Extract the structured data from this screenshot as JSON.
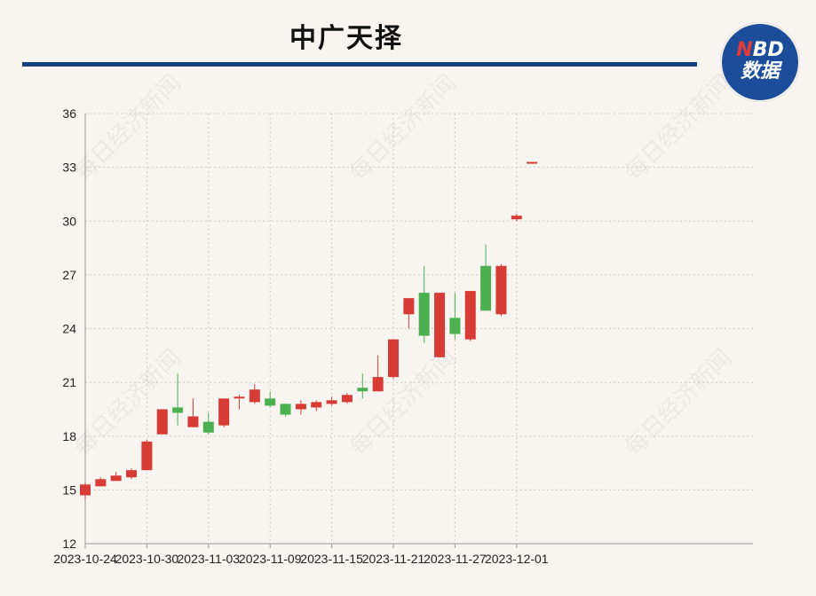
{
  "header": {
    "title": "中广天择",
    "logo_line1_accent": "N",
    "logo_line1_rest": "BD",
    "logo_line2": "数据"
  },
  "watermark_text": "每日经济新闻",
  "colors": {
    "up": "#d63b35",
    "down": "#4caf50",
    "title_rule": "#173f7f",
    "logo": "#1b4d9a",
    "grid": "#cfcac4",
    "axis": "#999999",
    "background": "#f8f4ef"
  },
  "chart_data": {
    "type": "candlestick",
    "title": "中广天择",
    "ylim": [
      12,
      36
    ],
    "y_ticks": [
      12,
      15,
      18,
      21,
      24,
      27,
      30,
      33,
      36
    ],
    "x_ticks": [
      "2023-10-24",
      "2023-10-30",
      "2023-11-03",
      "2023-11-09",
      "2023-11-15",
      "2023-11-21",
      "2023-11-27",
      "2023-12-01"
    ],
    "grid": true,
    "up_color_meaning": "red = close above open",
    "candles": [
      {
        "date": "2023-10-24",
        "open": 14.7,
        "close": 15.3,
        "high": 15.4,
        "low": 14.5
      },
      {
        "date": "2023-10-25",
        "open": 15.2,
        "close": 15.6,
        "high": 15.7,
        "low": 15.2
      },
      {
        "date": "2023-10-26",
        "open": 15.5,
        "close": 15.8,
        "high": 16.0,
        "low": 15.5
      },
      {
        "date": "2023-10-27",
        "open": 15.7,
        "close": 16.1,
        "high": 16.2,
        "low": 15.6
      },
      {
        "date": "2023-10-30",
        "open": 16.1,
        "close": 17.7,
        "high": 17.8,
        "low": 16.1
      },
      {
        "date": "2023-10-31",
        "open": 18.1,
        "close": 19.5,
        "high": 19.5,
        "low": 18.1
      },
      {
        "date": "2023-11-01",
        "open": 19.6,
        "close": 19.3,
        "high": 21.5,
        "low": 18.6
      },
      {
        "date": "2023-11-02",
        "open": 18.5,
        "close": 19.1,
        "high": 20.1,
        "low": 18.5
      },
      {
        "date": "2023-11-03",
        "open": 18.8,
        "close": 18.2,
        "high": 19.3,
        "low": 18.1
      },
      {
        "date": "2023-11-06",
        "open": 18.6,
        "close": 20.1,
        "high": 20.1,
        "low": 18.5
      },
      {
        "date": "2023-11-07",
        "open": 20.2,
        "close": 20.2,
        "high": 20.3,
        "low": 19.5
      },
      {
        "date": "2023-11-08",
        "open": 19.9,
        "close": 20.6,
        "high": 20.9,
        "low": 19.8
      },
      {
        "date": "2023-11-09",
        "open": 20.1,
        "close": 19.7,
        "high": 20.5,
        "low": 19.6
      },
      {
        "date": "2023-11-10",
        "open": 19.8,
        "close": 19.2,
        "high": 19.8,
        "low": 19.1
      },
      {
        "date": "2023-11-13",
        "open": 19.5,
        "close": 19.8,
        "high": 20.0,
        "low": 19.2
      },
      {
        "date": "2023-11-14",
        "open": 19.6,
        "close": 19.9,
        "high": 20.0,
        "low": 19.4
      },
      {
        "date": "2023-11-15",
        "open": 19.8,
        "close": 20.0,
        "high": 20.2,
        "low": 19.7
      },
      {
        "date": "2023-11-16",
        "open": 19.9,
        "close": 20.3,
        "high": 20.4,
        "low": 19.8
      },
      {
        "date": "2023-11-17",
        "open": 20.7,
        "close": 20.5,
        "high": 21.5,
        "low": 20.1
      },
      {
        "date": "2023-11-20",
        "open": 20.5,
        "close": 21.3,
        "high": 22.5,
        "low": 20.5
      },
      {
        "date": "2023-11-21",
        "open": 21.3,
        "close": 23.4,
        "high": 23.4,
        "low": 21.2
      },
      {
        "date": "2023-11-22",
        "open": 24.8,
        "close": 25.7,
        "high": 25.7,
        "low": 24.0
      },
      {
        "date": "2023-11-23",
        "open": 26.0,
        "close": 23.6,
        "high": 27.5,
        "low": 23.2
      },
      {
        "date": "2023-11-24",
        "open": 22.4,
        "close": 26.0,
        "high": 26.0,
        "low": 22.4
      },
      {
        "date": "2023-11-27",
        "open": 24.6,
        "close": 23.7,
        "high": 26.0,
        "low": 23.4
      },
      {
        "date": "2023-11-28",
        "open": 23.4,
        "close": 26.1,
        "high": 26.1,
        "low": 23.3
      },
      {
        "date": "2023-11-29",
        "open": 27.5,
        "close": 25.0,
        "high": 28.7,
        "low": 25.0
      },
      {
        "date": "2023-11-30",
        "open": 24.8,
        "close": 27.5,
        "high": 27.6,
        "low": 24.7
      },
      {
        "date": "2023-12-01",
        "open": 30.1,
        "close": 30.3,
        "high": 30.4,
        "low": 30.0
      },
      {
        "date": "2023-12-04",
        "open": 33.3,
        "close": 33.3,
        "high": 33.3,
        "low": 33.3
      }
    ]
  }
}
